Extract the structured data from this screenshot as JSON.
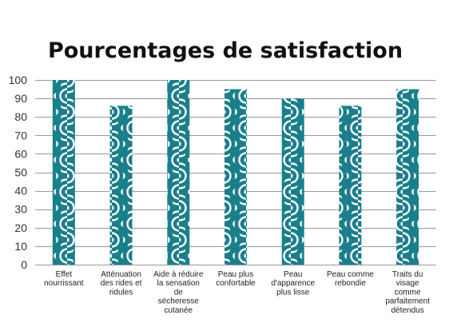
{
  "chart_data": {
    "type": "bar",
    "title": "Pourcentages de satisfaction",
    "xlabel": "",
    "ylabel": "",
    "ylim": [
      0,
      100
    ],
    "yticks": [
      0,
      10,
      20,
      30,
      40,
      50,
      60,
      70,
      80,
      90,
      100
    ],
    "grid": true,
    "legend": "none",
    "bar_color": "#1a7f8c",
    "bar_pattern": "concentric-arcs",
    "categories": [
      [
        "Effet",
        "nourrissant"
      ],
      [
        "Atténuation",
        "des rides et",
        "ridules"
      ],
      [
        "Aide à réduire",
        "la sensation",
        "de",
        "sécheresse",
        "cutanée"
      ],
      [
        "Peau plus",
        "confortable"
      ],
      [
        "Peau",
        "d'apparence",
        "plus lisse"
      ],
      [
        "Peau comme",
        "rebondie"
      ],
      [
        "Traits du",
        "visage",
        "comme",
        "parfaitement",
        "détendus"
      ]
    ],
    "values": [
      100,
      86,
      100,
      95,
      90,
      86,
      95
    ]
  }
}
